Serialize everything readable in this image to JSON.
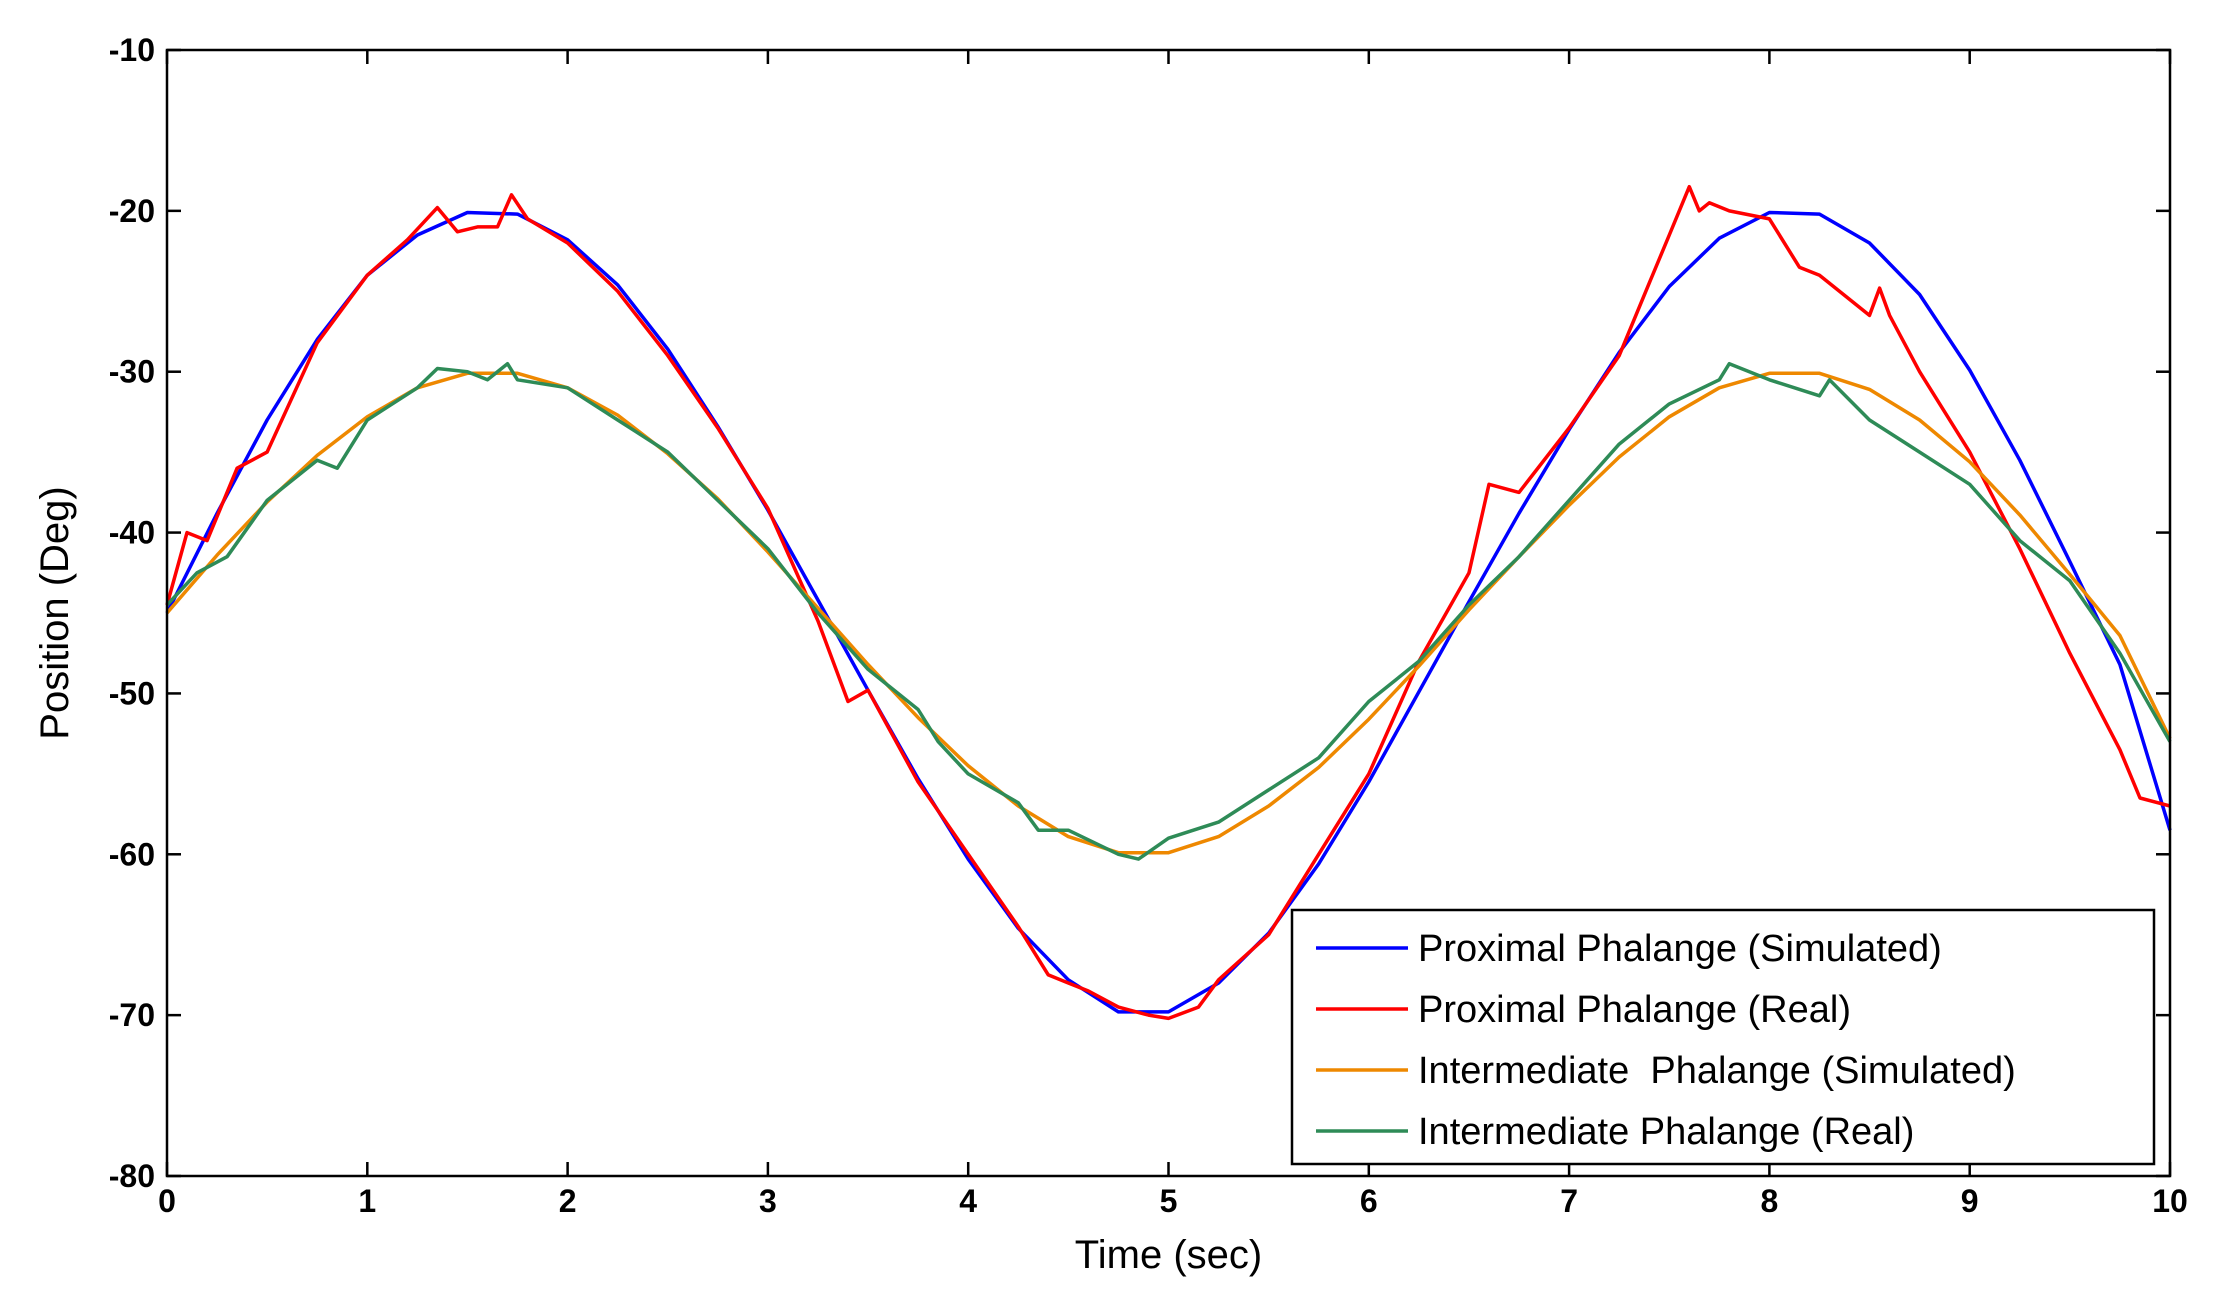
{
  "chart_data": {
    "type": "line",
    "title": "",
    "xlabel": "Time (sec)",
    "ylabel": "Position (Deg)",
    "xlim": [
      0,
      10
    ],
    "ylim": [
      -80,
      -10
    ],
    "xticks": [
      "0",
      "1",
      "2",
      "3",
      "4",
      "5",
      "6",
      "7",
      "8",
      "9",
      "10"
    ],
    "yticks": [
      "-10",
      "-20",
      "-30",
      "-40",
      "-50",
      "-60",
      "-70",
      "-80"
    ],
    "grid": false,
    "legend_position": "bottom-right",
    "series": [
      {
        "name": "Proximal Phalange (Simulated)",
        "color": "#0000ff",
        "x": [
          0,
          0.25,
          0.5,
          0.75,
          1,
          1.25,
          1.5,
          1.75,
          2,
          2.25,
          2.5,
          2.75,
          3,
          3.25,
          3.5,
          3.75,
          4,
          4.25,
          4.5,
          4.75,
          5,
          5.25,
          5.5,
          5.75,
          6,
          6.25,
          6.5,
          6.75,
          7,
          7.25,
          7.5,
          7.75,
          8,
          8.25,
          8.5,
          8.75,
          9,
          9.25,
          9.5,
          9.75,
          10
        ],
        "y": [
          -45,
          -38.8,
          -33.0,
          -28.0,
          -24.0,
          -21.5,
          -20.1,
          -20.2,
          -21.8,
          -24.6,
          -28.6,
          -33.4,
          -38.6,
          -44.2,
          -49.8,
          -55.3,
          -60.3,
          -64.6,
          -67.8,
          -69.8,
          -69.8,
          -68.0,
          -64.9,
          -60.6,
          -55.5,
          -49.9,
          -44.3,
          -38.8,
          -33.6,
          -28.8,
          -24.7,
          -21.7,
          -20.1,
          -20.2,
          -22.0,
          -25.2,
          -29.9,
          -35.5,
          -41.8,
          -48.2,
          -58.5
        ]
      },
      {
        "name": "Proximal Phalange (Real)",
        "color": "#ff0000",
        "x": [
          0,
          0.1,
          0.2,
          0.35,
          0.5,
          0.75,
          1,
          1.2,
          1.35,
          1.45,
          1.55,
          1.65,
          1.72,
          1.8,
          2,
          2.25,
          2.5,
          2.75,
          3,
          3.25,
          3.4,
          3.5,
          3.75,
          4,
          4.25,
          4.4,
          4.5,
          4.6,
          4.75,
          4.9,
          5.0,
          5.15,
          5.25,
          5.5,
          5.75,
          6,
          6.25,
          6.5,
          6.6,
          6.75,
          7,
          7.25,
          7.4,
          7.5,
          7.6,
          7.65,
          7.7,
          7.8,
          8,
          8.15,
          8.25,
          8.5,
          8.55,
          8.6,
          8.75,
          9,
          9.25,
          9.5,
          9.75,
          9.85,
          10
        ],
        "y": [
          -44.5,
          -40,
          -40.5,
          -36,
          -35,
          -28.2,
          -24.0,
          -21.8,
          -19.8,
          -21.3,
          -21.0,
          -21.0,
          -19.0,
          -20.5,
          -22.0,
          -25.0,
          -29.0,
          -33.5,
          -38.5,
          -45.5,
          -50.5,
          -49.8,
          -55.5,
          -60.0,
          -64.5,
          -67.5,
          -68.0,
          -68.5,
          -69.5,
          -70.0,
          -70.2,
          -69.5,
          -67.8,
          -65.0,
          -60.0,
          -55.0,
          -48.0,
          -42.5,
          -37.0,
          -37.5,
          -33.5,
          -29.0,
          -24.5,
          -21.5,
          -18.5,
          -20.0,
          -19.5,
          -20.0,
          -20.5,
          -23.5,
          -24.0,
          -26.5,
          -24.8,
          -26.5,
          -30.0,
          -35.0,
          -41.0,
          -47.5,
          -53.5,
          -56.5,
          -57.0
        ]
      },
      {
        "name": "Intermediate  Phalange (Simulated)",
        "color": "#ee8800",
        "x": [
          0,
          0.25,
          0.5,
          0.75,
          1,
          1.25,
          1.5,
          1.75,
          2,
          2.25,
          2.5,
          2.75,
          3,
          3.25,
          3.5,
          3.75,
          4,
          4.25,
          4.5,
          4.75,
          5,
          5.25,
          5.5,
          5.75,
          6,
          6.25,
          6.5,
          6.75,
          7,
          7.25,
          7.5,
          7.75,
          8,
          8.25,
          8.5,
          8.75,
          9,
          9.25,
          9.5,
          9.75,
          10
        ],
        "y": [
          -45,
          -41.4,
          -38.1,
          -35.2,
          -32.8,
          -31.0,
          -30.1,
          -30.1,
          -31.0,
          -32.7,
          -35.1,
          -37.9,
          -41.2,
          -44.7,
          -48.2,
          -51.5,
          -54.5,
          -57.0,
          -58.9,
          -59.9,
          -59.9,
          -58.9,
          -57.0,
          -54.6,
          -51.6,
          -48.3,
          -44.8,
          -41.5,
          -38.3,
          -35.3,
          -32.8,
          -31.0,
          -30.1,
          -30.1,
          -31.1,
          -33.0,
          -35.6,
          -38.9,
          -42.6,
          -46.4,
          -52.8
        ]
      },
      {
        "name": "Intermediate Phalange (Real)",
        "color": "#2e8b57",
        "x": [
          0,
          0.15,
          0.3,
          0.5,
          0.75,
          0.85,
          1,
          1.25,
          1.35,
          1.5,
          1.6,
          1.7,
          1.75,
          2,
          2.25,
          2.5,
          2.75,
          3,
          3.25,
          3.5,
          3.75,
          3.85,
          4,
          4.25,
          4.35,
          4.5,
          4.75,
          4.85,
          5,
          5.25,
          5.5,
          5.75,
          6,
          6.25,
          6.5,
          6.75,
          7,
          7.25,
          7.5,
          7.75,
          7.8,
          8,
          8.25,
          8.3,
          8.5,
          8.75,
          9,
          9.25,
          9.5,
          9.75,
          10
        ],
        "y": [
          -44.5,
          -42.5,
          -41.5,
          -38.0,
          -35.5,
          -36.0,
          -33.0,
          -31.0,
          -29.8,
          -30.0,
          -30.5,
          -29.5,
          -30.5,
          -31.0,
          -33.0,
          -35.0,
          -38.0,
          -41.0,
          -45.0,
          -48.5,
          -51.0,
          -53.0,
          -55.0,
          -56.8,
          -58.5,
          -58.5,
          -60.0,
          -60.3,
          -59.0,
          -58.0,
          -56.0,
          -54.0,
          -50.5,
          -48.0,
          -44.5,
          -41.5,
          -38.0,
          -34.5,
          -32.0,
          -30.5,
          -29.5,
          -30.5,
          -31.5,
          -30.5,
          -33.0,
          -35.0,
          -37.0,
          -40.5,
          -43.0,
          -47.5,
          -53.0
        ]
      }
    ]
  }
}
